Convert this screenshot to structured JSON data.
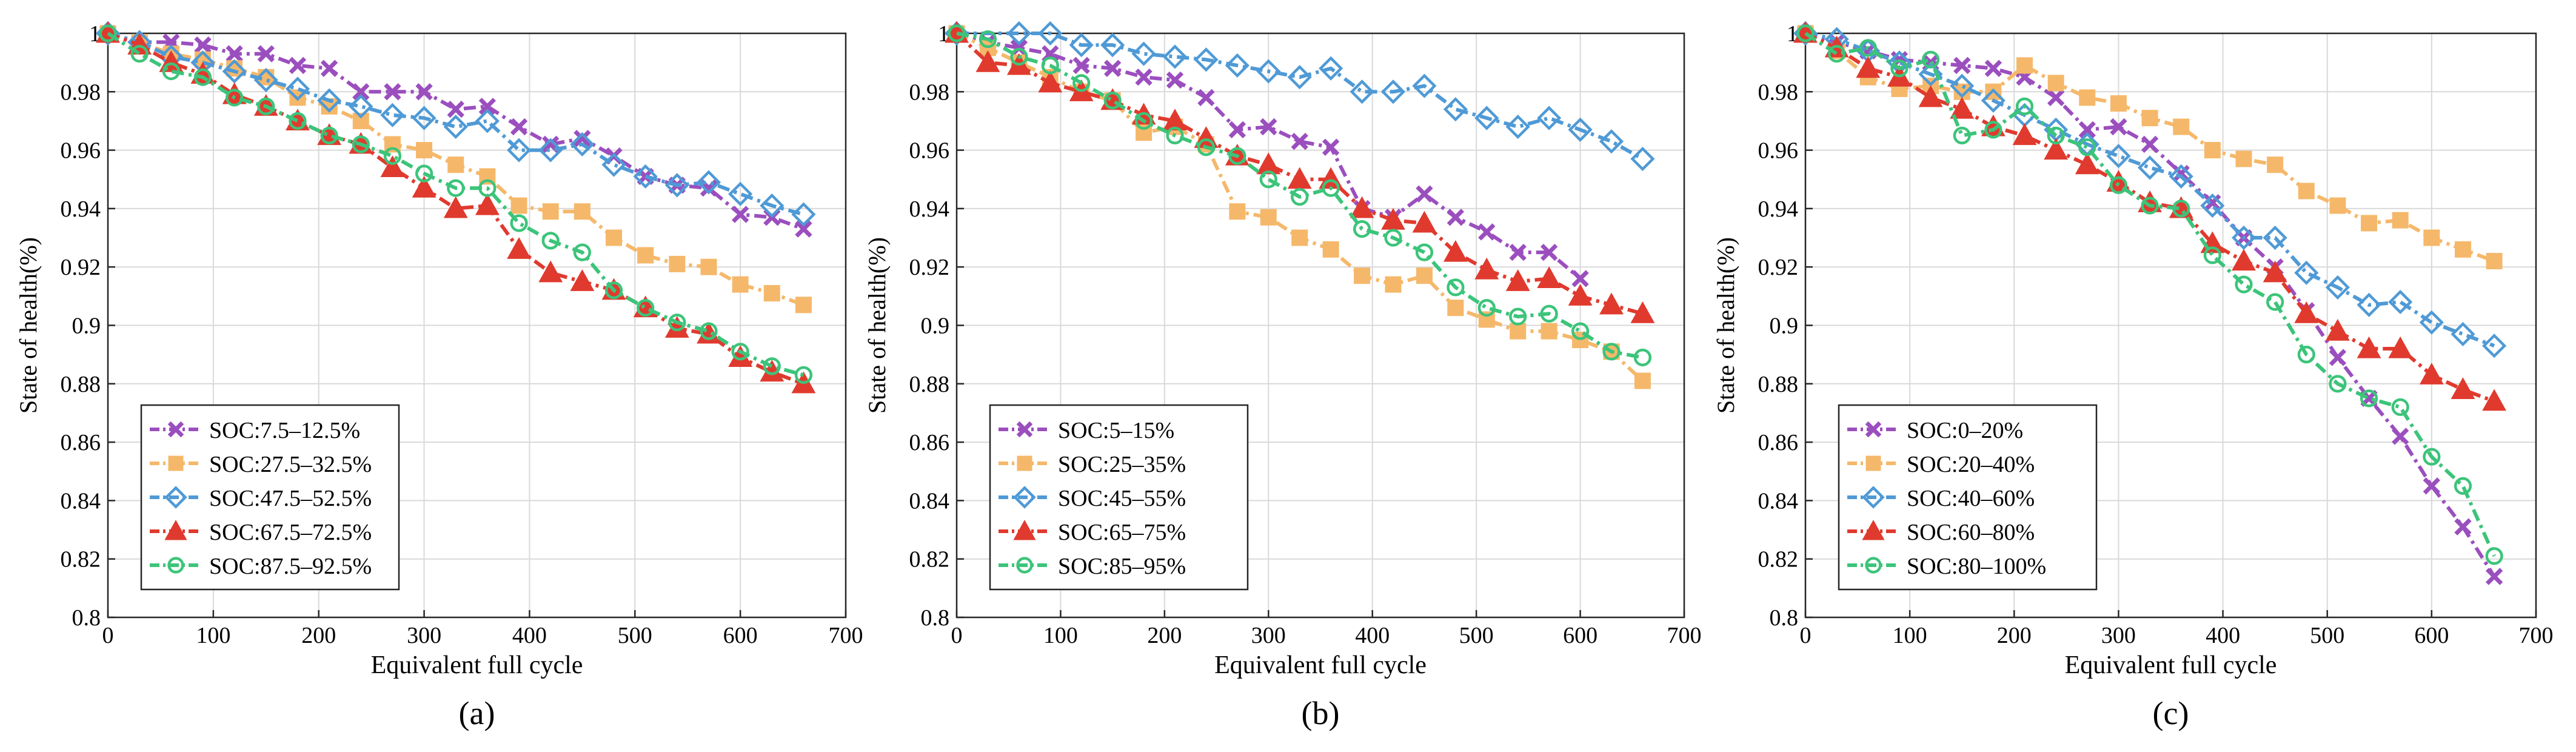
{
  "chart_data": [
    {
      "type": "line",
      "panel_label": "(a)",
      "xlabel": "Equivalent full cycle",
      "ylabel": "State of health(%)",
      "xlim": [
        0,
        700
      ],
      "ylim": [
        0.8,
        1.0
      ],
      "xticks": [
        0,
        100,
        200,
        300,
        400,
        500,
        600,
        700
      ],
      "xtick_labels": [
        "0",
        "100",
        "200",
        "300",
        "400",
        "500",
        "600",
        "700"
      ],
      "yticks": [
        0.8,
        0.82,
        0.84,
        0.86,
        0.88,
        0.9,
        0.92,
        0.94,
        0.96,
        0.98,
        1.0
      ],
      "ytick_labels": [
        "0.8",
        "0.82",
        "0.84",
        "0.86",
        "0.88",
        "0.9",
        "0.92",
        "0.94",
        "0.96",
        "0.98",
        "1"
      ],
      "grid": true,
      "legend": "bottom-left",
      "series": [
        {
          "name": "SOC:7.5–12.5%",
          "color": "#9B4FBE",
          "marker": "x",
          "x": [
            0,
            30,
            60,
            90,
            120,
            150,
            180,
            210,
            240,
            270,
            300,
            330,
            360,
            390,
            420,
            450,
            480,
            510,
            540,
            570,
            600,
            630,
            660
          ],
          "y": [
            1.0,
            0.997,
            0.997,
            0.996,
            0.993,
            0.993,
            0.989,
            0.988,
            0.98,
            0.98,
            0.98,
            0.974,
            0.975,
            0.968,
            0.962,
            0.964,
            0.958,
            0.951,
            0.948,
            0.947,
            0.938,
            0.937,
            0.933
          ]
        },
        {
          "name": "SOC:27.5–32.5%",
          "color": "#F5B86A",
          "marker": "square",
          "x": [
            0,
            30,
            60,
            90,
            120,
            150,
            180,
            210,
            240,
            270,
            300,
            330,
            360,
            390,
            420,
            450,
            480,
            510,
            540,
            570,
            600,
            630,
            660
          ],
          "y": [
            1.0,
            0.997,
            0.993,
            0.991,
            0.988,
            0.985,
            0.978,
            0.975,
            0.97,
            0.962,
            0.96,
            0.955,
            0.951,
            0.941,
            0.939,
            0.939,
            0.93,
            0.924,
            0.921,
            0.92,
            0.914,
            0.911,
            0.907
          ]
        },
        {
          "name": "SOC:47.5–52.5%",
          "color": "#4F9AD6",
          "marker": "diamond",
          "x": [
            0,
            30,
            60,
            90,
            120,
            150,
            180,
            210,
            240,
            270,
            300,
            330,
            360,
            390,
            420,
            450,
            480,
            510,
            540,
            570,
            600,
            630,
            660
          ],
          "y": [
            1.0,
            0.997,
            0.992,
            0.99,
            0.987,
            0.984,
            0.981,
            0.977,
            0.975,
            0.972,
            0.971,
            0.968,
            0.97,
            0.96,
            0.96,
            0.962,
            0.955,
            0.951,
            0.948,
            0.949,
            0.945,
            0.941,
            0.938
          ]
        },
        {
          "name": "SOC:67.5–72.5%",
          "color": "#E03A2E",
          "marker": "triangle",
          "x": [
            0,
            30,
            60,
            90,
            120,
            150,
            180,
            210,
            240,
            270,
            300,
            330,
            360,
            390,
            420,
            450,
            480,
            510,
            540,
            570,
            600,
            630,
            660
          ],
          "y": [
            1.0,
            0.996,
            0.99,
            0.986,
            0.979,
            0.975,
            0.97,
            0.965,
            0.962,
            0.954,
            0.947,
            0.94,
            0.941,
            0.926,
            0.918,
            0.915,
            0.912,
            0.906,
            0.899,
            0.897,
            0.889,
            0.884,
            0.88
          ]
        },
        {
          "name": "SOC:87.5–92.5%",
          "color": "#3CC47A",
          "marker": "circle",
          "x": [
            0,
            30,
            60,
            90,
            120,
            150,
            180,
            210,
            240,
            270,
            300,
            330,
            360,
            390,
            420,
            450,
            480,
            510,
            540,
            570,
            600,
            630,
            660
          ],
          "y": [
            1.0,
            0.993,
            0.987,
            0.985,
            0.978,
            0.975,
            0.97,
            0.965,
            0.962,
            0.958,
            0.952,
            0.947,
            0.947,
            0.935,
            0.929,
            0.925,
            0.912,
            0.906,
            0.901,
            0.898,
            0.891,
            0.886,
            0.883
          ]
        }
      ]
    },
    {
      "type": "line",
      "panel_label": "(b)",
      "xlabel": "Equivalent full cycle",
      "ylabel": "State of health(%)",
      "xlim": [
        0,
        700
      ],
      "ylim": [
        0.8,
        1.0
      ],
      "xticks": [
        0,
        100,
        200,
        300,
        400,
        500,
        600,
        700
      ],
      "xtick_labels": [
        "0",
        "100",
        "200",
        "300",
        "400",
        "500",
        "600",
        "700"
      ],
      "yticks": [
        0.8,
        0.82,
        0.84,
        0.86,
        0.88,
        0.9,
        0.92,
        0.94,
        0.96,
        0.98,
        1.0
      ],
      "ytick_labels": [
        "0.8",
        "0.82",
        "0.84",
        "0.86",
        "0.88",
        "0.9",
        "0.92",
        "0.94",
        "0.96",
        "0.98",
        "1"
      ],
      "grid": true,
      "legend": "bottom-left",
      "series": [
        {
          "name": "SOC:5–15%",
          "color": "#9B4FBE",
          "marker": "x",
          "x": [
            0,
            30,
            60,
            90,
            120,
            150,
            180,
            210,
            240,
            270,
            300,
            330,
            360,
            390,
            420,
            450,
            480,
            510,
            540,
            570,
            600
          ],
          "y": [
            1.0,
            0.997,
            0.995,
            0.993,
            0.989,
            0.988,
            0.985,
            0.984,
            0.978,
            0.967,
            0.968,
            0.963,
            0.961,
            0.94,
            0.937,
            0.945,
            0.937,
            0.932,
            0.925,
            0.925,
            0.916
          ]
        },
        {
          "name": "SOC:25–35%",
          "color": "#F5B86A",
          "marker": "square",
          "x": [
            0,
            30,
            60,
            90,
            120,
            150,
            180,
            210,
            240,
            270,
            300,
            330,
            360,
            390,
            420,
            450,
            480,
            510,
            540,
            570,
            600,
            630,
            660
          ],
          "y": [
            1.0,
            0.995,
            0.99,
            0.985,
            0.98,
            0.977,
            0.966,
            0.968,
            0.962,
            0.939,
            0.937,
            0.93,
            0.926,
            0.917,
            0.914,
            0.917,
            0.906,
            0.902,
            0.898,
            0.898,
            0.895,
            0.891,
            0.881
          ]
        },
        {
          "name": "SOC:45–55%",
          "color": "#4F9AD6",
          "marker": "diamond",
          "x": [
            0,
            60,
            90,
            120,
            150,
            180,
            210,
            240,
            270,
            300,
            330,
            360,
            390,
            420,
            450,
            480,
            510,
            540,
            570,
            600,
            630,
            660
          ],
          "y": [
            1.0,
            1.0,
            1.0,
            0.996,
            0.996,
            0.993,
            0.992,
            0.991,
            0.989,
            0.987,
            0.985,
            0.988,
            0.98,
            0.98,
            0.982,
            0.974,
            0.971,
            0.968,
            0.971,
            0.967,
            0.963,
            0.957
          ]
        },
        {
          "name": "SOC:65–75%",
          "color": "#E03A2E",
          "marker": "triangle",
          "x": [
            0,
            30,
            60,
            90,
            120,
            150,
            180,
            210,
            240,
            270,
            300,
            330,
            360,
            390,
            420,
            450,
            480,
            510,
            540,
            570,
            600,
            630,
            660
          ],
          "y": [
            1.0,
            0.99,
            0.989,
            0.983,
            0.98,
            0.977,
            0.972,
            0.97,
            0.964,
            0.958,
            0.955,
            0.95,
            0.95,
            0.94,
            0.936,
            0.935,
            0.925,
            0.919,
            0.915,
            0.916,
            0.91,
            0.907,
            0.904
          ]
        },
        {
          "name": "SOC:85–95%",
          "color": "#3CC47A",
          "marker": "circle",
          "x": [
            0,
            30,
            60,
            90,
            120,
            150,
            180,
            210,
            240,
            270,
            300,
            330,
            360,
            390,
            420,
            450,
            480,
            510,
            540,
            570,
            600,
            630,
            660
          ],
          "y": [
            1.0,
            0.998,
            0.992,
            0.989,
            0.983,
            0.977,
            0.97,
            0.965,
            0.961,
            0.958,
            0.95,
            0.944,
            0.947,
            0.933,
            0.93,
            0.925,
            0.913,
            0.906,
            0.903,
            0.904,
            0.898,
            0.891,
            0.889
          ]
        }
      ]
    },
    {
      "type": "line",
      "panel_label": "(c)",
      "xlabel": "Equivalent full cycle",
      "ylabel": "State of health(%)",
      "xlim": [
        0,
        700
      ],
      "ylim": [
        0.8,
        1.0
      ],
      "xticks": [
        0,
        100,
        200,
        300,
        400,
        500,
        600,
        700
      ],
      "xtick_labels": [
        "0",
        "100",
        "200",
        "300",
        "400",
        "500",
        "600",
        "700"
      ],
      "yticks": [
        0.8,
        0.82,
        0.84,
        0.86,
        0.88,
        0.9,
        0.92,
        0.94,
        0.96,
        0.98,
        1.0
      ],
      "ytick_labels": [
        "0.8",
        "0.82",
        "0.84",
        "0.86",
        "0.88",
        "0.9",
        "0.92",
        "0.94",
        "0.96",
        "0.98",
        "1"
      ],
      "grid": true,
      "legend": "bottom-left",
      "series": [
        {
          "name": "SOC:0–20%",
          "color": "#9B4FBE",
          "marker": "x",
          "x": [
            0,
            30,
            60,
            90,
            120,
            150,
            180,
            210,
            240,
            270,
            300,
            330,
            360,
            390,
            420,
            450,
            480,
            510,
            540,
            570,
            600,
            630,
            660
          ],
          "y": [
            1.0,
            0.997,
            0.994,
            0.991,
            0.99,
            0.989,
            0.988,
            0.985,
            0.978,
            0.967,
            0.968,
            0.962,
            0.952,
            0.942,
            0.93,
            0.92,
            0.905,
            0.889,
            0.875,
            0.862,
            0.845,
            0.831,
            0.814
          ]
        },
        {
          "name": "SOC:20–40%",
          "color": "#F5B86A",
          "marker": "square",
          "x": [
            0,
            30,
            60,
            90,
            120,
            150,
            180,
            210,
            240,
            270,
            300,
            330,
            360,
            390,
            420,
            450,
            480,
            510,
            540,
            570,
            600,
            630,
            660
          ],
          "y": [
            1.0,
            0.994,
            0.985,
            0.981,
            0.982,
            0.98,
            0.98,
            0.989,
            0.983,
            0.978,
            0.976,
            0.971,
            0.968,
            0.96,
            0.957,
            0.955,
            0.946,
            0.941,
            0.935,
            0.936,
            0.93,
            0.926,
            0.922
          ]
        },
        {
          "name": "SOC:40–60%",
          "color": "#4F9AD6",
          "marker": "diamond",
          "x": [
            0,
            30,
            60,
            90,
            120,
            150,
            180,
            210,
            240,
            270,
            300,
            330,
            360,
            390,
            420,
            450,
            480,
            510,
            540,
            570,
            600,
            630,
            660
          ],
          "y": [
            1.0,
            0.998,
            0.994,
            0.99,
            0.986,
            0.982,
            0.977,
            0.972,
            0.967,
            0.962,
            0.958,
            0.954,
            0.951,
            0.941,
            0.93,
            0.93,
            0.918,
            0.913,
            0.907,
            0.908,
            0.901,
            0.897,
            0.893
          ]
        },
        {
          "name": "SOC:60–80%",
          "color": "#E03A2E",
          "marker": "triangle",
          "x": [
            0,
            30,
            60,
            90,
            120,
            150,
            180,
            210,
            240,
            270,
            300,
            330,
            360,
            390,
            420,
            450,
            480,
            510,
            540,
            570,
            600,
            630,
            660
          ],
          "y": [
            1.0,
            0.995,
            0.988,
            0.985,
            0.978,
            0.974,
            0.968,
            0.965,
            0.96,
            0.955,
            0.949,
            0.942,
            0.94,
            0.928,
            0.922,
            0.918,
            0.904,
            0.898,
            0.892,
            0.892,
            0.883,
            0.878,
            0.874
          ]
        },
        {
          "name": "SOC:80–100%",
          "color": "#3CC47A",
          "marker": "circle",
          "x": [
            0,
            30,
            60,
            90,
            120,
            150,
            180,
            210,
            240,
            270,
            300,
            330,
            360,
            390,
            420,
            450,
            480,
            510,
            540,
            570,
            600,
            630,
            660
          ],
          "y": [
            1.0,
            0.993,
            0.995,
            0.988,
            0.991,
            0.965,
            0.967,
            0.975,
            0.965,
            0.961,
            0.948,
            0.941,
            0.94,
            0.924,
            0.914,
            0.908,
            0.89,
            0.88,
            0.875,
            0.872,
            0.855,
            0.845,
            0.821
          ]
        }
      ]
    }
  ]
}
